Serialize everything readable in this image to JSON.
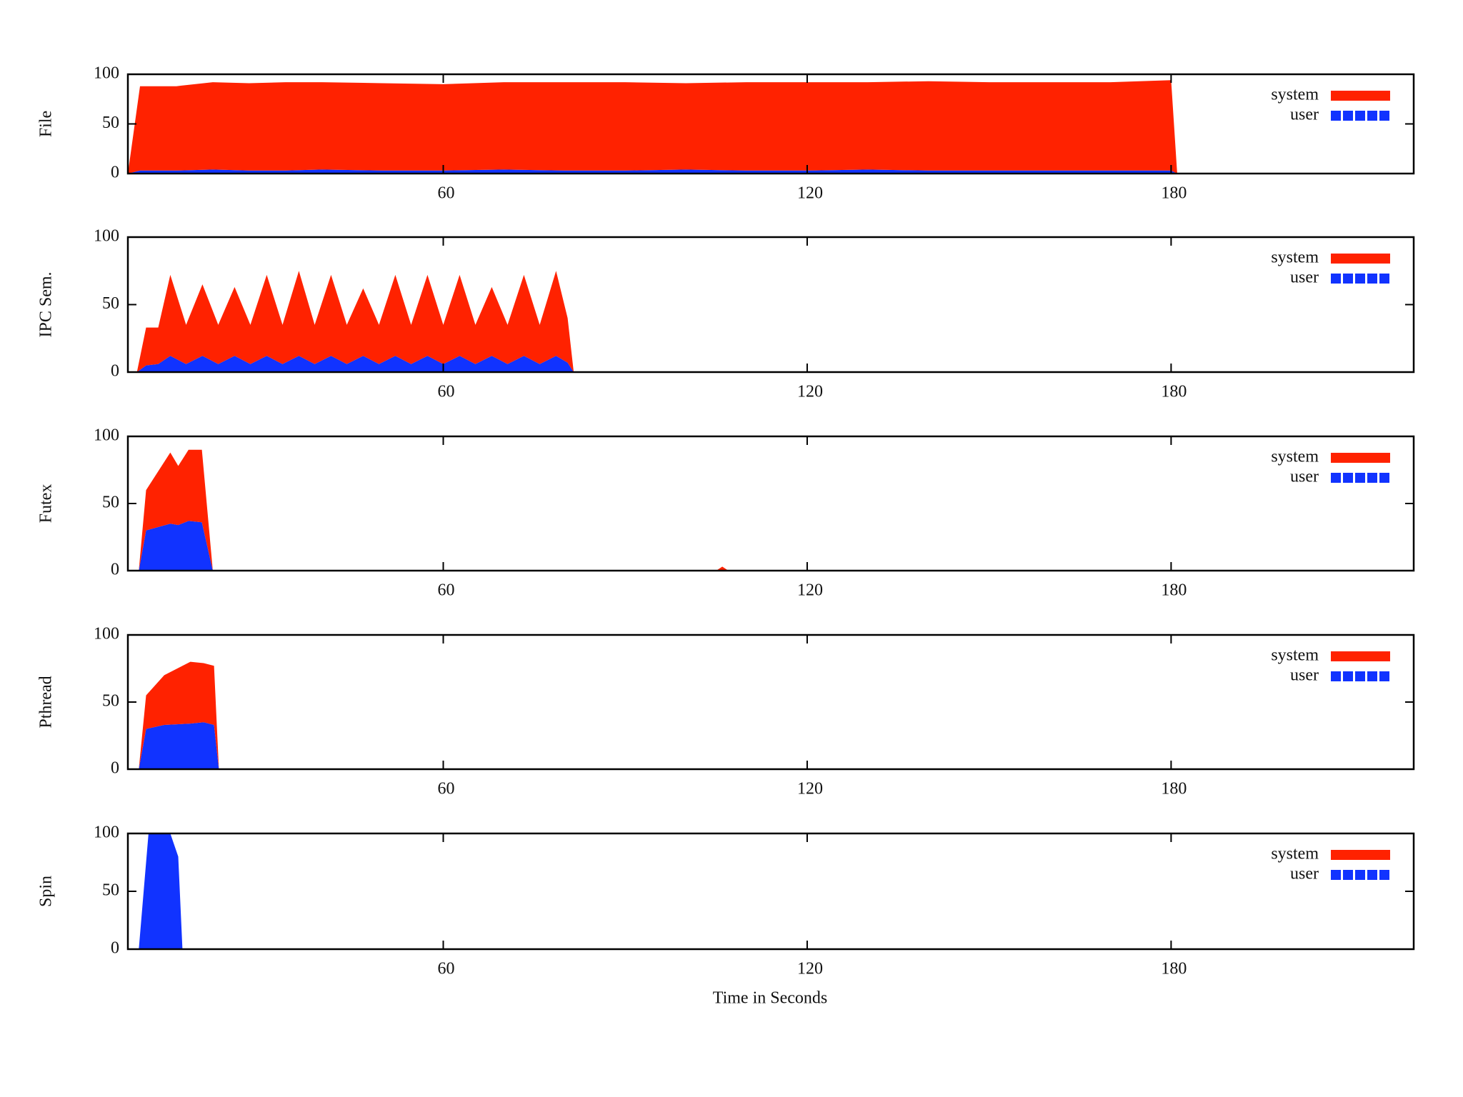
{
  "chart_data": [
    {
      "type": "area",
      "ylabel": "File",
      "legend": "upper right",
      "xlim": [
        8,
        220
      ],
      "ylim": [
        0,
        100
      ],
      "xticks": [
        60,
        120,
        180
      ],
      "yticks": [
        0,
        50,
        100
      ],
      "x": [
        8,
        10,
        16,
        22,
        28,
        34,
        40,
        50,
        60,
        70,
        80,
        90,
        100,
        110,
        120,
        130,
        140,
        150,
        160,
        170,
        180,
        181,
        220
      ],
      "series": [
        {
          "name": "system",
          "color": "#ff2200",
          "values": [
            0,
            85,
            85,
            88,
            88,
            89,
            88,
            88,
            87,
            88,
            89,
            89,
            87,
            89,
            89,
            88,
            90,
            89,
            89,
            89,
            91,
            0,
            0
          ]
        },
        {
          "name": "user",
          "color": "#1133ff",
          "values": [
            0,
            3,
            3,
            4,
            3,
            3,
            4,
            3,
            3,
            4,
            3,
            3,
            4,
            3,
            3,
            4,
            3,
            3,
            3,
            3,
            3,
            0,
            0
          ]
        }
      ]
    },
    {
      "type": "area",
      "ylabel": "IPC Sem.",
      "legend": "upper right",
      "xlim": [
        8,
        220
      ],
      "ylim": [
        0,
        100
      ],
      "xticks": [
        60,
        120,
        180
      ],
      "yticks": [
        0,
        50,
        100
      ],
      "x": [
        8,
        9.5,
        11,
        13,
        15,
        17.6,
        20.3,
        22.9,
        25.6,
        28.2,
        30.9,
        33.5,
        36.2,
        38.8,
        41.5,
        44.1,
        46.8,
        49.4,
        52.1,
        54.7,
        57.4,
        60,
        62.7,
        65.3,
        68,
        70.6,
        73.3,
        75.9,
        78.6,
        80.5,
        81.5,
        220
      ],
      "series": [
        {
          "name": "system",
          "color": "#ff2200",
          "values": [
            0,
            0,
            28,
            27,
            60,
            29,
            53,
            29,
            51,
            29,
            60,
            29,
            63,
            29,
            60,
            29,
            50,
            29,
            60,
            29,
            60,
            29,
            60,
            29,
            51,
            29,
            60,
            29,
            63,
            33,
            0,
            0
          ]
        },
        {
          "name": "user",
          "color": "#1133ff",
          "values": [
            0,
            0,
            5,
            6,
            12,
            6,
            12,
            6,
            12,
            6,
            12,
            6,
            12,
            6,
            12,
            6,
            12,
            6,
            12,
            6,
            12,
            6,
            12,
            6,
            12,
            6,
            12,
            6,
            12,
            7,
            0,
            0
          ]
        }
      ]
    },
    {
      "type": "area",
      "ylabel": "Futex",
      "legend": "upper right",
      "xlim": [
        8,
        220
      ],
      "ylim": [
        0,
        100
      ],
      "xticks": [
        60,
        120,
        180
      ],
      "yticks": [
        0,
        50,
        100
      ],
      "x": [
        8,
        9.8,
        11,
        15,
        16.3,
        18,
        20.2,
        22,
        105,
        106,
        107,
        220
      ],
      "series": [
        {
          "name": "system",
          "color": "#ff2200",
          "values": [
            0,
            0,
            30,
            53,
            44,
            53,
            54,
            0,
            0,
            3,
            0,
            0
          ]
        },
        {
          "name": "user",
          "color": "#1133ff",
          "values": [
            0,
            0,
            30,
            35,
            34,
            37,
            36,
            0,
            0,
            0,
            0,
            0
          ]
        }
      ]
    },
    {
      "type": "area",
      "ylabel": "Pthread",
      "legend": "upper right",
      "xlim": [
        8,
        220
      ],
      "ylim": [
        0,
        100
      ],
      "xticks": [
        60,
        120,
        180
      ],
      "yticks": [
        0,
        50,
        100
      ],
      "x": [
        8,
        9.8,
        11,
        14,
        18.3,
        20.5,
        22.2,
        23,
        220
      ],
      "series": [
        {
          "name": "system",
          "color": "#ff2200",
          "values": [
            0,
            0,
            25,
            37,
            46,
            44,
            44,
            0,
            0
          ]
        },
        {
          "name": "user",
          "color": "#1133ff",
          "values": [
            0,
            0,
            30,
            33,
            34,
            35,
            33,
            0,
            0
          ]
        }
      ]
    },
    {
      "type": "area",
      "ylabel": "Spin",
      "xlabel": "Time in Seconds",
      "legend": "upper right",
      "xlim": [
        8,
        220
      ],
      "ylim": [
        0,
        100
      ],
      "xticks": [
        60,
        120,
        180
      ],
      "yticks": [
        0,
        50,
        100
      ],
      "x": [
        8,
        9.8,
        11.4,
        15,
        16.3,
        17,
        220
      ],
      "series": [
        {
          "name": "system",
          "color": "#ff2200",
          "values": [
            0,
            0,
            0,
            0,
            0,
            0,
            0
          ]
        },
        {
          "name": "user",
          "color": "#1133ff",
          "values": [
            0,
            0,
            100,
            100,
            80,
            0,
            0
          ]
        }
      ]
    }
  ]
}
